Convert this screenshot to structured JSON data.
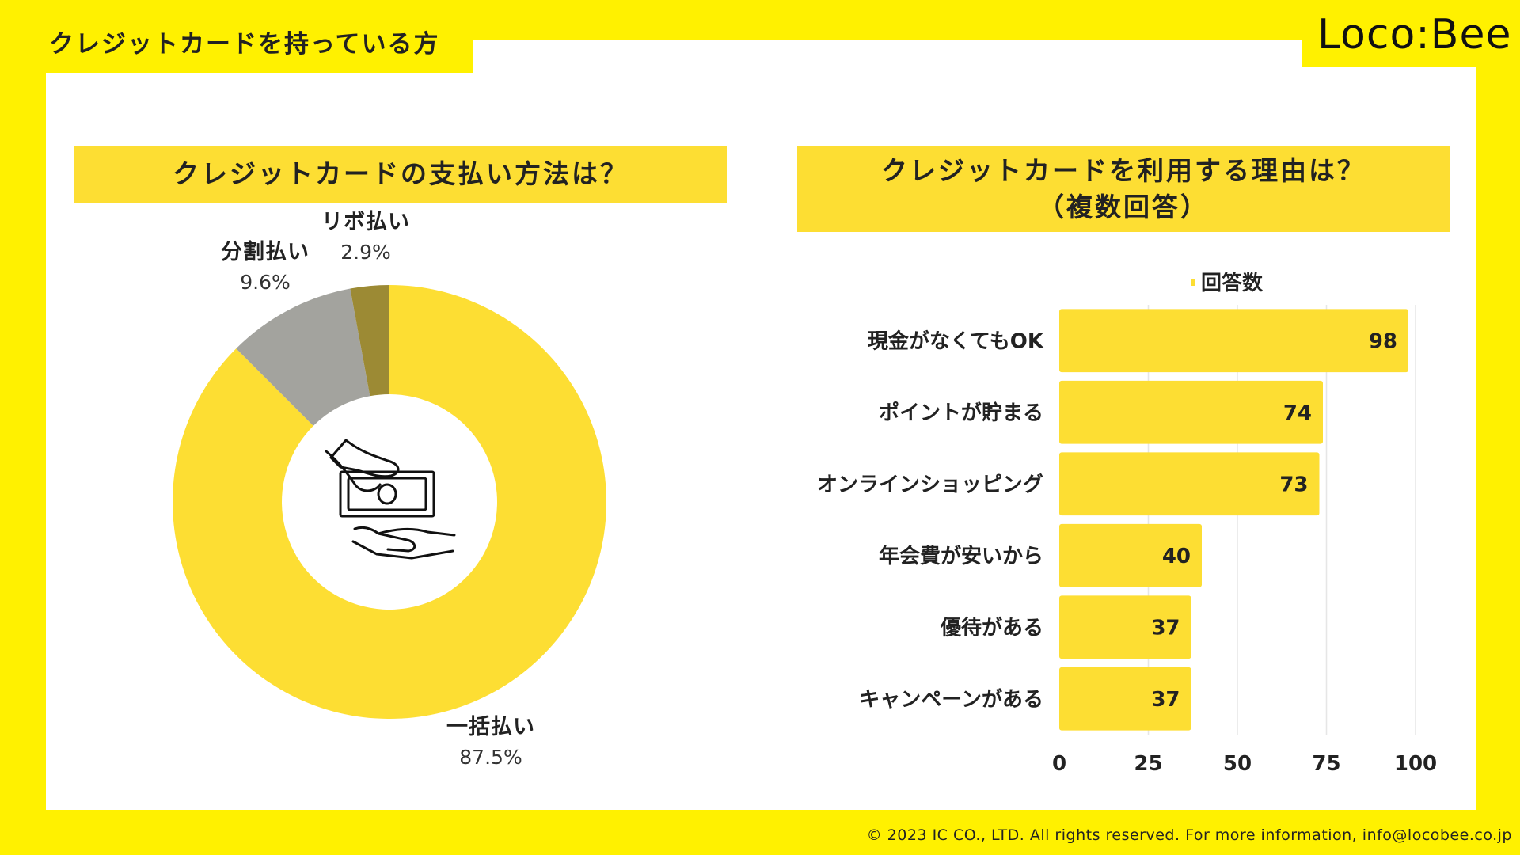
{
  "page_title": "クレジットカードを持っている方",
  "logo": {
    "text": "Loco:Bee"
  },
  "footer": {
    "copyright": "© 2023 IC CO., LTD. All rights reserved. For more information, info@locobee.co.jp"
  },
  "colors": {
    "background_yellow": "#FFF100",
    "accent_yellow": "#FDDE33",
    "pie_gray": "#A3A39E",
    "pie_olive": "#9C8A34"
  },
  "chart_data": [
    {
      "type": "pie",
      "title": "クレジットカードの支払い方法は？",
      "style": "donut",
      "center_icon": "hand-giving-money-icon",
      "slices": [
        {
          "label": "一括払い",
          "value": 87.5,
          "display": "87.5%",
          "color": "#FDDE33"
        },
        {
          "label": "分割払い",
          "value": 9.6,
          "display": "9.6%",
          "color": "#A3A39E"
        },
        {
          "label": "リボ払い",
          "value": 2.9,
          "display": "2.9%",
          "color": "#9C8A34"
        }
      ]
    },
    {
      "type": "bar",
      "orientation": "horizontal",
      "title_line1": "クレジットカードを利用する理由は？",
      "title_line2": "（複数回答）",
      "legend": "回答数",
      "legend_position": "top",
      "categories": [
        "現金がなくてもOK",
        "ポイントが貯まる",
        "オンラインショッピング",
        "年会費が安いから",
        "優待がある",
        "キャンペーンがある"
      ],
      "values": [
        98,
        74,
        73,
        40,
        37,
        37
      ],
      "xlim": [
        0,
        100
      ],
      "xticks": [
        0,
        25,
        50,
        75,
        100
      ],
      "grid": "vertical",
      "color": "#FDDE33"
    }
  ]
}
